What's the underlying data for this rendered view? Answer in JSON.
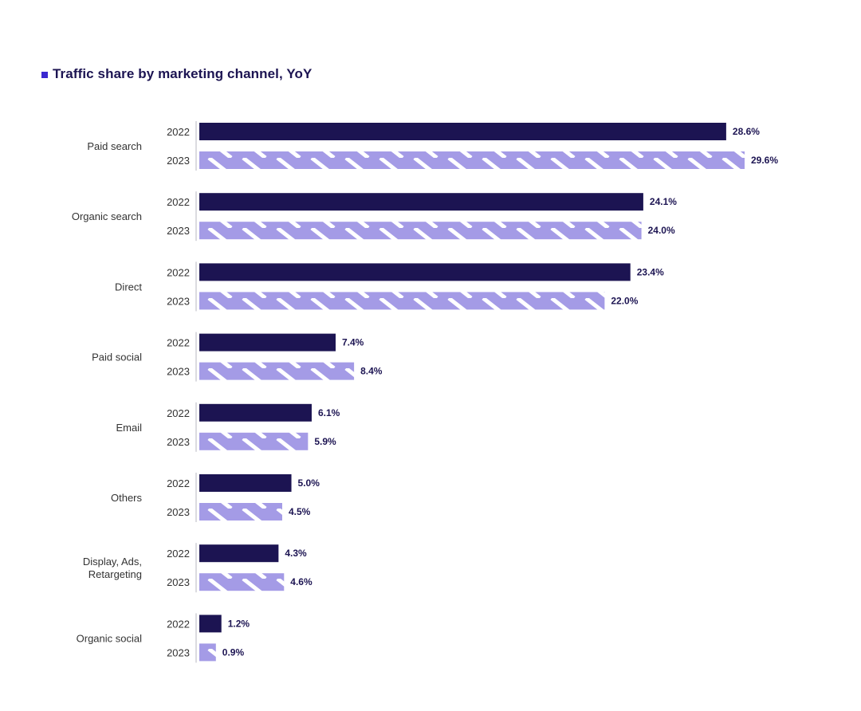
{
  "chart_data": {
    "type": "bar",
    "orientation": "horizontal",
    "title": "Traffic share by marketing channel, YoY",
    "categories": [
      [
        "Paid search"
      ],
      [
        "Organic search"
      ],
      [
        "Direct"
      ],
      [
        "Paid social"
      ],
      [
        "Email"
      ],
      [
        "Others"
      ],
      [
        "Display, Ads,",
        "Retargeting"
      ],
      [
        "Organic social"
      ]
    ],
    "series": [
      {
        "name": "2022",
        "color": "#1c1452",
        "pattern": "solid",
        "values": [
          28.6,
          24.1,
          23.4,
          7.4,
          6.1,
          5.0,
          4.3,
          1.2
        ],
        "labels": [
          "28.6%",
          "24.1%",
          "23.4%",
          "7.4%",
          "6.1%",
          "5.0%",
          "4.3%",
          "1.2%"
        ]
      },
      {
        "name": "2023",
        "color": "#a49be6",
        "stripe_color": "#ffffff",
        "pattern": "striped",
        "values": [
          29.6,
          24.0,
          22.0,
          8.4,
          5.9,
          4.5,
          4.6,
          0.9
        ],
        "labels": [
          "29.6%",
          "24.0%",
          "22.0%",
          "8.4%",
          "5.9%",
          "4.5%",
          "4.6%",
          "0.9%"
        ]
      }
    ],
    "xlim": [
      0,
      29.6
    ],
    "grid": false,
    "legend": "none"
  },
  "title_marker_color": "#3a28d0"
}
